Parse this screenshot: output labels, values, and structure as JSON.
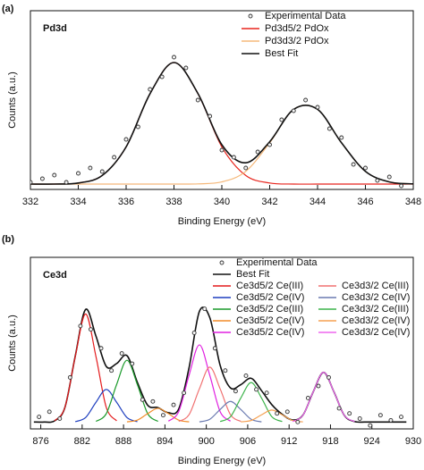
{
  "chart_data": [
    {
      "type": "line",
      "panel_label": "(a)",
      "title": "Pd3d",
      "xlabel": "Binding Energy (eV)",
      "ylabel": "Counts (a.u.)",
      "xlim": [
        332,
        348
      ],
      "xticks": [
        332,
        334,
        336,
        338,
        340,
        342,
        344,
        346,
        348
      ],
      "ylim": [
        0,
        100
      ],
      "series": [
        {
          "name": "Experimental Data",
          "color": "#333333",
          "style": "markers",
          "x": [
            332,
            332.5,
            333,
            333.5,
            334,
            334.5,
            335,
            335.5,
            336,
            336.5,
            337,
            337.5,
            338,
            338.5,
            339,
            339.5,
            340,
            340.5,
            341,
            341.5,
            342,
            342.5,
            343,
            343.5,
            344,
            344.5,
            345,
            345.5,
            346,
            346.5,
            347,
            347.5
          ],
          "values": [
            4,
            6,
            8,
            4,
            9,
            12,
            10,
            18,
            28,
            35,
            56,
            63,
            74,
            68,
            50,
            41,
            22,
            18,
            12,
            21,
            25,
            39,
            44,
            50,
            46,
            34,
            29,
            14,
            12,
            5,
            7,
            2
          ]
        },
        {
          "name": "Pd3d5/2 PdOx",
          "color": "#e8251d",
          "style": "line",
          "x": [
            332,
            333,
            334,
            335,
            336,
            337,
            338,
            339,
            340,
            341,
            342,
            343,
            344,
            345,
            346,
            347,
            348
          ],
          "values": [
            3,
            3,
            3.6,
            7.8,
            23.8,
            53.6,
            71,
            53.6,
            23.8,
            7.8,
            3.6,
            3,
            3,
            3,
            3,
            3,
            3
          ]
        },
        {
          "name": "Pd3d3/2 PdOx",
          "color": "#f5b87a",
          "style": "line",
          "x": [
            332,
            333,
            334,
            335,
            336,
            337,
            338,
            339,
            340,
            341,
            342,
            343,
            344,
            345,
            346,
            347,
            348
          ],
          "values": [
            3,
            3,
            3,
            3,
            3,
            3,
            3,
            3.1,
            4.2,
            10.1,
            26.1,
            44.8,
            44.8,
            26.1,
            10.1,
            4.2,
            3.1
          ]
        },
        {
          "name": "Best Fit",
          "color": "#111111",
          "style": "line",
          "x": [
            332,
            333,
            334,
            335,
            336,
            337,
            338,
            339,
            340,
            341,
            342,
            343,
            344,
            345,
            346,
            347,
            348
          ],
          "values": [
            3,
            3,
            3.6,
            7.8,
            23.8,
            53.6,
            71,
            53.7,
            25,
            14.9,
            26.7,
            44.8,
            44.8,
            26.1,
            10.1,
            4.2,
            3.1
          ]
        }
      ]
    },
    {
      "type": "line",
      "panel_label": "(b)",
      "title": "Ce3d",
      "xlabel": "Binding Energy (eV)",
      "ylabel": "Counts (a.u.)",
      "xlim": [
        874.5,
        930
      ],
      "xticks": [
        876,
        882,
        888,
        894,
        900,
        906,
        912,
        918,
        924,
        930
      ],
      "ylim": [
        0,
        100
      ],
      "series": [
        {
          "name": "Experimental Data",
          "color": "#333333",
          "style": "markers",
          "x": [
            875.75,
            877.25,
            878.75,
            880.25,
            881.75,
            883.25,
            884.75,
            886.25,
            887.75,
            889.25,
            890.75,
            892.25,
            893.75,
            895.25,
            896.75,
            898.25,
            899.75,
            901.25,
            902.75,
            904.25,
            905.75,
            907.25,
            908.75,
            910.25,
            911.75,
            913.25,
            914.75,
            916.25,
            917.75,
            919.25,
            920.75,
            922.25,
            923.75,
            925.25,
            926.75,
            928.25
          ],
          "values": [
            7,
            10,
            6,
            30,
            60,
            58,
            47,
            34,
            44,
            38,
            17,
            16,
            8,
            14,
            21,
            56,
            70,
            47,
            34,
            22,
            31,
            23,
            21,
            9,
            10,
            4,
            18,
            25,
            30,
            12,
            9,
            6,
            2,
            8,
            5,
            7
          ]
        },
        {
          "name": "Best Fit",
          "color": "#111111",
          "style": "line",
          "x": [
            875,
            876.5,
            878,
            879.5,
            881,
            882.5,
            884,
            885.5,
            887,
            888.5,
            890,
            891.5,
            893,
            894.5,
            896,
            897.5,
            899,
            900.5,
            902,
            903.5,
            905,
            906.5,
            908,
            909.5,
            911,
            912.5,
            914,
            915.5,
            917,
            918.5,
            920,
            921.5,
            923,
            924.5,
            926,
            927.5,
            929
          ],
          "values": [
            4,
            4,
            4.7,
            12.5,
            42.4,
            69.6,
            54.1,
            36.4,
            38.1,
            42.7,
            27.2,
            13.8,
            12.4,
            9.4,
            11.6,
            35.7,
            68.5,
            64.9,
            37.1,
            23.9,
            25.8,
            29.5,
            22.3,
            14.1,
            8.5,
            5.2,
            8,
            21.6,
            33,
            21.6,
            7.9,
            4.3,
            4,
            4,
            4,
            4,
            4
          ]
        },
        {
          "name": "Ce3d5/2 Ce(III)",
          "color": "#e41a1c",
          "style": "line",
          "x": [
            878,
            879.5,
            881,
            882.5,
            884,
            885.5,
            887
          ],
          "values": [
            4.7,
            12.5,
            42.2,
            67,
            42.2,
            12.5,
            4.7
          ]
        },
        {
          "name": "Ce3d5/2 Ce(IV)",
          "color": "#1f3fbf",
          "style": "line",
          "x": [
            881,
            882.5,
            884,
            885.5,
            887,
            888.5,
            890
          ],
          "values": [
            4.2,
            6.6,
            15.5,
            23,
            15.5,
            6.6,
            4.2
          ]
        },
        {
          "name": "Ce3d5/2 Ce(III)",
          "color": "#1a9a2a",
          "style": "line",
          "x": [
            884,
            885.5,
            887,
            888.5,
            890,
            891.5,
            893
          ],
          "values": [
            4.4,
            8.9,
            25.9,
            40,
            25.9,
            8.9,
            4.4
          ]
        },
        {
          "name": "Ce3d5/2 Ce(IV)",
          "color": "#f28c28",
          "style": "line",
          "x": [
            888.5,
            890,
            891.5,
            893,
            894.5,
            896,
            897.5
          ],
          "values": [
            4.1,
            5.1,
            8.9,
            12,
            8.9,
            5.1,
            4.1
          ]
        },
        {
          "name": "Ce3d5/2 Ce(IV)",
          "color": "#e020e0",
          "style": "line",
          "x": [
            894.5,
            896,
            897.5,
            899,
            900.5,
            902,
            903.5
          ],
          "values": [
            4.5,
            10.1,
            31.3,
            49,
            31.3,
            10.1,
            4.5
          ]
        },
        {
          "name": "Ce3d3/2 Ce(III)",
          "color": "#f07070",
          "style": "line",
          "x": [
            896,
            897.5,
            899,
            900.5,
            902,
            903.5,
            905
          ],
          "values": [
            4.4,
            8.3,
            23.4,
            36,
            23.4,
            8.3,
            4.4
          ]
        },
        {
          "name": "Ce3d3/2 Ce(IV)",
          "color": "#6a7ab0",
          "style": "line",
          "x": [
            899,
            900.5,
            902,
            903.5,
            905,
            906.5,
            908
          ],
          "values": [
            4.1,
            5.6,
            11.3,
            16,
            11.3,
            5.6,
            4.1
          ]
        },
        {
          "name": "Ce3d3/2 Ce(III)",
          "color": "#3cb34a",
          "style": "line",
          "x": [
            902,
            903.5,
            905,
            906.5,
            908,
            909.5,
            911
          ],
          "values": [
            4.3,
            7.1,
            18,
            27,
            18,
            7.1,
            4.3
          ]
        },
        {
          "name": "Ce3d3/2 Ce(IV)",
          "color": "#f5a050",
          "style": "line",
          "x": [
            905,
            906.5,
            908,
            909.5,
            911,
            912.5,
            914
          ],
          "values": [
            4.1,
            4.9,
            8.2,
            11,
            8.2,
            4.9,
            4.1
          ]
        },
        {
          "name": "Ce3d3/2 Ce(IV)",
          "color": "#ee66ee",
          "style": "line",
          "x": [
            912.5,
            914,
            915.5,
            917,
            918.5,
            920,
            921.5
          ],
          "values": [
            4.3,
            7.9,
            21.6,
            33,
            21.6,
            7.9,
            4.3
          ]
        }
      ]
    }
  ]
}
